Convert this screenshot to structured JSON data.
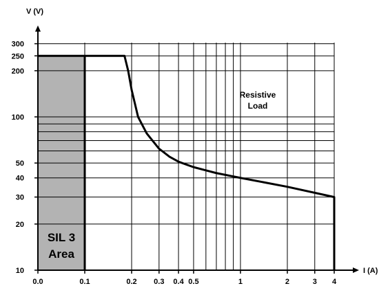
{
  "chart_data": {
    "type": "line",
    "title": "",
    "xlabel": "I (A)",
    "ylabel": "V (V)",
    "x_scale": "log (0.1–4), with 0.0–0.1 segment",
    "y_scale": "log",
    "xlim": [
      0.0,
      4
    ],
    "ylim": [
      10,
      300
    ],
    "grid": true,
    "x_ticks": [
      {
        "value": 0.0,
        "label": "0.0"
      },
      {
        "value": 0.1,
        "label": "0.1"
      },
      {
        "value": 0.2,
        "label": "0.2"
      },
      {
        "value": 0.3,
        "label": "0.3"
      },
      {
        "value": 0.4,
        "label": "0.4"
      },
      {
        "value": 0.5,
        "label": "0.5"
      },
      {
        "value": 1,
        "label": "1"
      },
      {
        "value": 2,
        "label": "2"
      },
      {
        "value": 3,
        "label": "3"
      },
      {
        "value": 4,
        "label": "4"
      }
    ],
    "x_gridlines": [
      0.1,
      0.2,
      0.3,
      0.4,
      0.5,
      0.6,
      0.7,
      0.8,
      0.9,
      1,
      2,
      3,
      4
    ],
    "y_ticks": [
      {
        "value": 10,
        "label": "10"
      },
      {
        "value": 20,
        "label": "20"
      },
      {
        "value": 30,
        "label": "30"
      },
      {
        "value": 40,
        "label": "40"
      },
      {
        "value": 50,
        "label": "50"
      },
      {
        "value": 100,
        "label": "100"
      },
      {
        "value": 200,
        "label": "200"
      },
      {
        "value": 250,
        "label": "250"
      },
      {
        "value": 300,
        "label": "300"
      }
    ],
    "y_gridlines": [
      20,
      30,
      40,
      50,
      60,
      70,
      80,
      90,
      100,
      200,
      250,
      300
    ],
    "series": [
      {
        "points": [
          {
            "x": 0.0,
            "y": 250
          },
          {
            "x": 0.18,
            "y": 250
          },
          {
            "x": 0.19,
            "y": 200
          },
          {
            "x": 0.2,
            "y": 150
          },
          {
            "x": 0.22,
            "y": 100
          },
          {
            "x": 0.25,
            "y": 78
          },
          {
            "x": 0.3,
            "y": 62
          },
          {
            "x": 0.35,
            "y": 55
          },
          {
            "x": 0.4,
            "y": 51
          },
          {
            "x": 0.5,
            "y": 47
          },
          {
            "x": 0.7,
            "y": 43
          },
          {
            "x": 1,
            "y": 40
          },
          {
            "x": 2,
            "y": 35
          },
          {
            "x": 4,
            "y": 30
          },
          {
            "x": 4,
            "y": 10
          }
        ]
      }
    ],
    "shaded_region": {
      "x_range": [
        0.0,
        0.1
      ],
      "y_range": [
        10,
        250
      ],
      "color": "#b3b3b3",
      "label_lines": [
        "SIL 3",
        "Area"
      ]
    },
    "annotations": [
      {
        "lines": [
          "Resistive",
          "Load"
        ],
        "x": 1,
        "y": 140
      }
    ],
    "colors": {
      "line": "#000000",
      "grid": "#000000",
      "shade": "#b3b3b3"
    }
  }
}
